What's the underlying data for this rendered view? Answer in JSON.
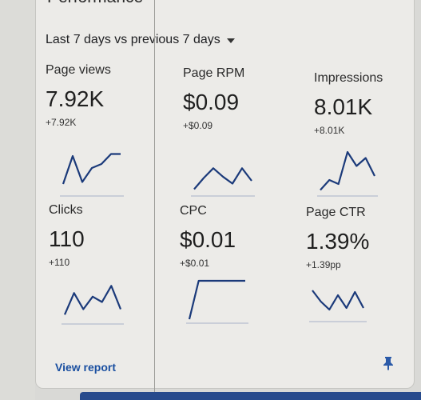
{
  "card": {
    "title": "Performance",
    "range_label": "Last 7 days vs previous 7 days",
    "view_report": "View report"
  },
  "metrics": [
    {
      "label": "Page views",
      "value": "7.92K",
      "delta": "+7.92K",
      "trend": [
        0.2,
        0.9,
        0.25,
        0.6,
        0.7,
        0.95,
        0.95
      ]
    },
    {
      "label": "Page RPM",
      "value": "$0.09",
      "delta": "+$0.09",
      "trend": [
        0.1,
        0.5,
        0.85,
        0.55,
        0.3,
        0.85,
        0.4
      ]
    },
    {
      "label": "Impressions",
      "value": "8.01K",
      "delta": "+8.01K",
      "trend": [
        0.05,
        0.3,
        0.2,
        1.0,
        0.65,
        0.85,
        0.4
      ]
    },
    {
      "label": "Clicks",
      "value": "110",
      "delta": "+110",
      "trend": [
        0.15,
        0.75,
        0.3,
        0.65,
        0.5,
        0.95,
        0.3
      ]
    },
    {
      "label": "CPC",
      "value": "$0.01",
      "delta": "+$0.01",
      "trend": [
        0.0,
        1.0,
        1.0,
        1.0,
        1.0,
        1.0,
        1.0
      ]
    },
    {
      "label": "Page CTR",
      "value": "1.39%",
      "delta": "+1.39pp",
      "trend": [
        0.85,
        0.5,
        0.25,
        0.7,
        0.3,
        0.8,
        0.3
      ]
    }
  ],
  "colors": {
    "trend_line": "#1b3a7a",
    "link": "#1a4fa0",
    "accent_bar": "#274a8c"
  },
  "icons": {
    "dropdown": "caret-down-icon",
    "pin": "pin-icon"
  }
}
